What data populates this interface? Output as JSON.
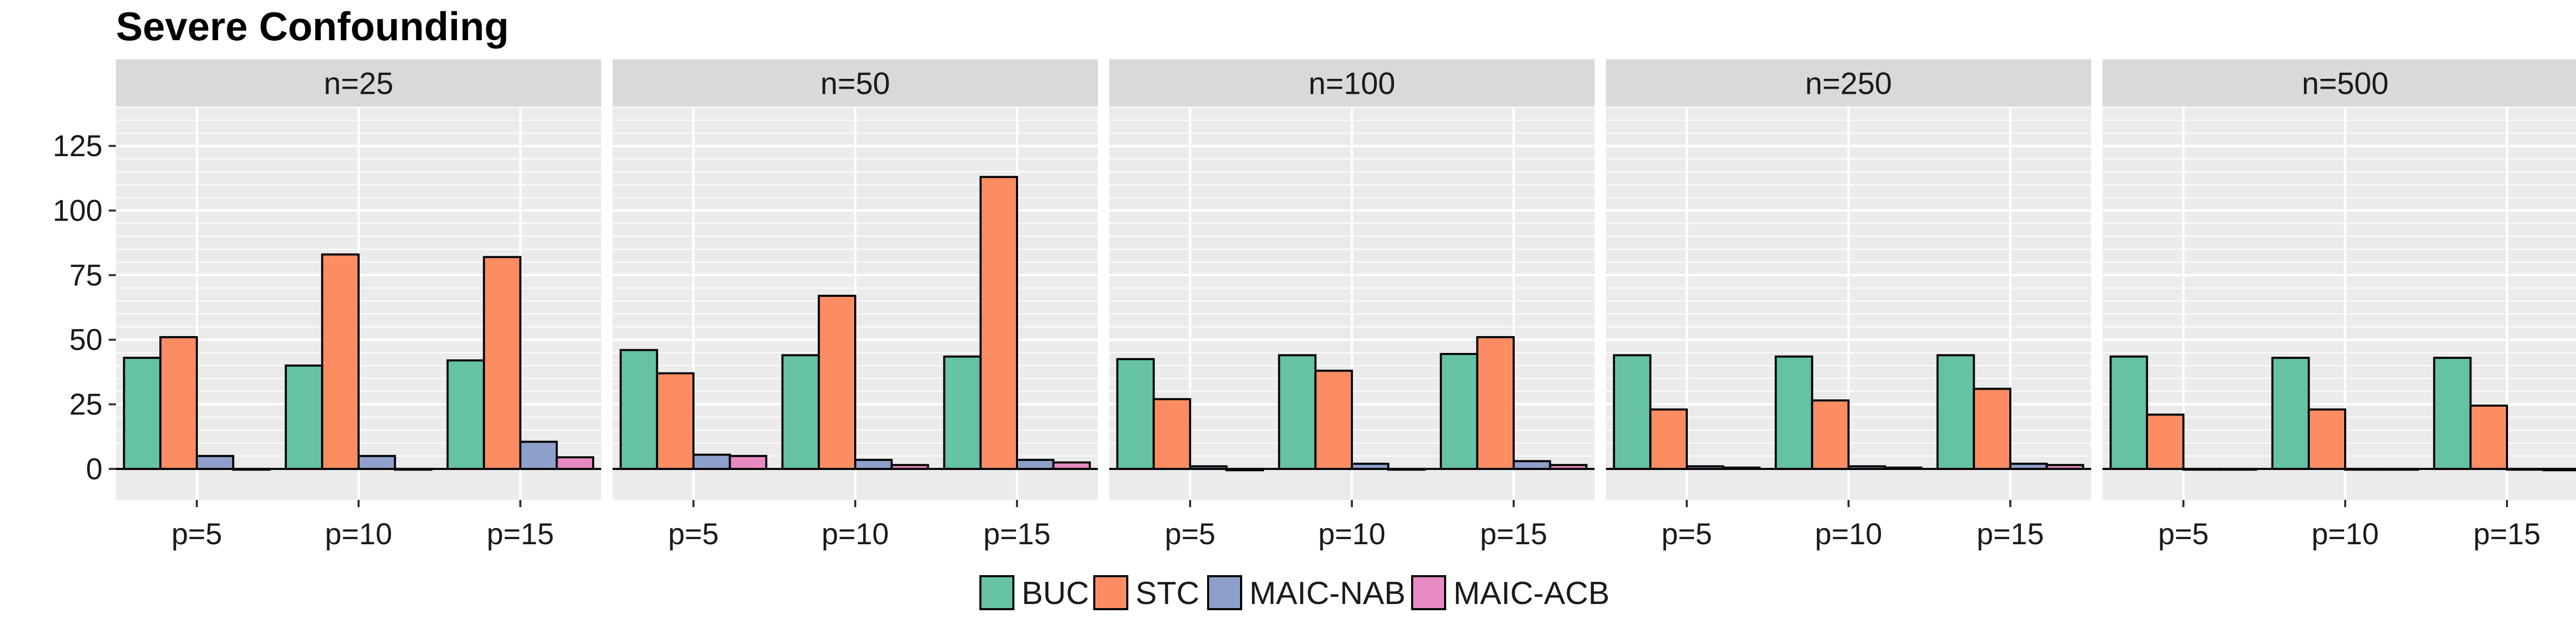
{
  "chart_data": {
    "type": "bar",
    "title": "Severe Confounding",
    "xlabel": "",
    "ylabel": "",
    "ylim": [
      -12,
      140
    ],
    "yticks": [
      0,
      25,
      50,
      75,
      100,
      125
    ],
    "ytick_labels": [
      "0",
      "25",
      "50",
      "75",
      "100",
      "125"
    ],
    "categories": [
      "p=5",
      "p=10",
      "p=15"
    ],
    "facets": [
      "n=25",
      "n=50",
      "n=100",
      "n=250",
      "n=500"
    ],
    "series": [
      {
        "name": "BUC",
        "color": "#66c2a5",
        "values": [
          [
            43,
            40,
            42
          ],
          [
            46,
            44,
            43.5
          ],
          [
            42.5,
            44,
            44.5
          ],
          [
            44,
            43.5,
            44
          ],
          [
            43.5,
            43,
            43
          ]
        ]
      },
      {
        "name": "STC",
        "color": "#fc8d62",
        "values": [
          [
            51,
            83,
            82
          ],
          [
            37,
            67,
            113
          ],
          [
            27,
            38,
            51
          ],
          [
            23,
            26.5,
            31
          ],
          [
            21,
            23,
            24.5
          ]
        ]
      },
      {
        "name": "MAIC-NAB",
        "color": "#8da0cb",
        "values": [
          [
            5,
            5,
            10.5
          ],
          [
            5.5,
            3.5,
            3.5
          ],
          [
            1,
            2,
            3
          ],
          [
            1,
            1,
            2
          ],
          [
            0,
            0,
            0
          ]
        ]
      },
      {
        "name": "MAIC-ACB",
        "color": "#e78ac3",
        "values": [
          [
            0,
            0,
            4.5
          ],
          [
            5,
            1.5,
            2.5
          ],
          [
            -0.5,
            0,
            1.5
          ],
          [
            0.5,
            0.5,
            1.5
          ],
          [
            0,
            0,
            -0.5
          ]
        ]
      }
    ],
    "grid": true,
    "legend_position": "bottom"
  }
}
